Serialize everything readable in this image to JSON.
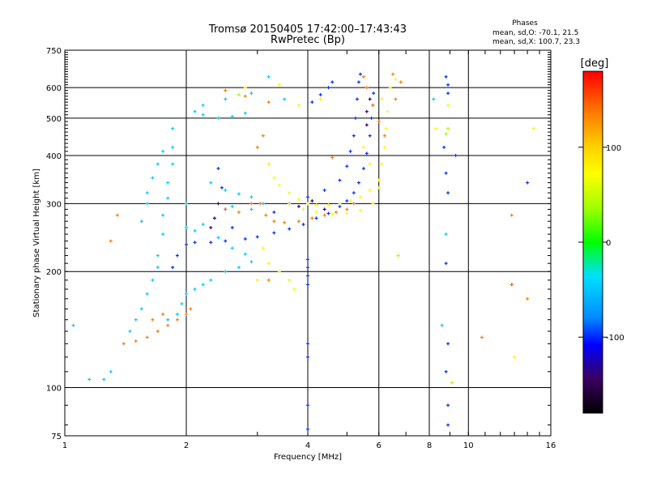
{
  "chart_data": {
    "type": "scatter",
    "title": "Tromsø 20150405 17:42:00–17:43:43",
    "subtitle": "RwPretec (Bp)",
    "xlabel": "Frequency [MHz]",
    "ylabel": "Stationary phase Virtual Height [km]",
    "xscale": "log",
    "yscale": "log",
    "xlim": [
      1,
      16
    ],
    "ylim": [
      75,
      750
    ],
    "xticks": [
      "1",
      "2",
      "4",
      "6",
      "8",
      "10",
      "16"
    ],
    "xtick_values": [
      1,
      2,
      4,
      6,
      8,
      10,
      16
    ],
    "yticks": [
      "75",
      "100",
      "200",
      "300",
      "400",
      "500",
      "600",
      "750"
    ],
    "ytick_values": [
      75,
      100,
      200,
      300,
      400,
      500,
      600,
      750
    ],
    "grid": true,
    "legend_title": "Phases",
    "legend_lines": [
      "mean, sd,O: -70.1, 21.5",
      "mean, sd,X: 100.7, 23.3"
    ],
    "colorbar": {
      "unit": "[deg]",
      "ticks": [
        "100",
        "0",
        "-100"
      ],
      "tick_values": [
        100,
        0,
        -100
      ],
      "range": [
        -180,
        180
      ]
    },
    "series": [
      {
        "phase": -100,
        "points": [
          [
            1.85,
            205
          ],
          [
            1.9,
            220
          ],
          [
            2.0,
            235
          ],
          [
            2.1,
            238
          ],
          [
            2.3,
            238
          ],
          [
            2.5,
            240
          ],
          [
            2.8,
            243
          ],
          [
            3.0,
            246
          ],
          [
            3.3,
            252
          ],
          [
            3.6,
            258
          ],
          [
            3.9,
            265
          ],
          [
            4.2,
            275
          ],
          [
            4.5,
            283
          ],
          [
            4.8,
            295
          ],
          [
            5.0,
            305
          ],
          [
            5.2,
            320
          ],
          [
            5.35,
            340
          ],
          [
            5.5,
            370
          ],
          [
            5.6,
            405
          ],
          [
            5.7,
            450
          ],
          [
            5.75,
            500
          ],
          [
            5.8,
            540
          ],
          [
            5.82,
            580
          ],
          [
            3.3,
            285
          ],
          [
            3.6,
            300
          ],
          [
            4.0,
            312
          ],
          [
            4.4,
            325
          ],
          [
            4.8,
            345
          ],
          [
            5.0,
            375
          ],
          [
            5.1,
            410
          ],
          [
            5.2,
            450
          ],
          [
            5.25,
            500
          ],
          [
            5.3,
            560
          ],
          [
            5.35,
            620
          ],
          [
            5.4,
            650
          ],
          [
            4.1,
            550
          ],
          [
            4.3,
            575
          ],
          [
            4.5,
            600
          ],
          [
            4.6,
            620
          ],
          [
            2.4,
            370
          ],
          [
            2.45,
            330
          ],
          [
            2.5,
            290
          ],
          [
            2.6,
            260
          ],
          [
            4.0,
            120
          ],
          [
            4.0,
            130
          ],
          [
            4.0,
            185
          ],
          [
            4.0,
            195
          ],
          [
            4.0,
            205
          ],
          [
            4.0,
            215
          ],
          [
            4.0,
            90
          ],
          [
            4.0,
            78
          ],
          [
            8.8,
            640
          ],
          [
            8.9,
            610
          ],
          [
            8.9,
            580
          ],
          [
            8.7,
            420
          ],
          [
            8.8,
            360
          ],
          [
            8.9,
            320
          ],
          [
            8.8,
            210
          ],
          [
            8.9,
            130
          ],
          [
            8.8,
            110
          ],
          [
            8.9,
            90
          ],
          [
            8.9,
            80
          ],
          [
            9.3,
            400
          ],
          [
            14.0,
            340
          ],
          [
            12.8,
            185
          ]
        ]
      },
      {
        "phase": -150,
        "points": [
          [
            2.3,
            260
          ],
          [
            2.35,
            275
          ],
          [
            2.4,
            300
          ],
          [
            3.6,
            300
          ],
          [
            3.8,
            295
          ],
          [
            4.1,
            305
          ],
          [
            4.4,
            290
          ],
          [
            5.6,
            520
          ],
          [
            5.7,
            560
          ],
          [
            5.6,
            480
          ]
        ]
      },
      {
        "phase": -50,
        "points": [
          [
            1.05,
            145
          ],
          [
            1.15,
            105
          ],
          [
            1.25,
            105
          ],
          [
            1.3,
            110
          ],
          [
            1.45,
            140
          ],
          [
            1.5,
            150
          ],
          [
            1.55,
            160
          ],
          [
            1.6,
            175
          ],
          [
            1.65,
            190
          ],
          [
            1.7,
            205
          ],
          [
            1.7,
            220
          ],
          [
            1.75,
            250
          ],
          [
            1.75,
            280
          ],
          [
            1.8,
            310
          ],
          [
            1.8,
            340
          ],
          [
            1.85,
            380
          ],
          [
            1.85,
            420
          ],
          [
            1.85,
            470
          ],
          [
            1.95,
            165
          ],
          [
            2.0,
            175
          ],
          [
            2.1,
            180
          ],
          [
            2.2,
            185
          ],
          [
            2.3,
            190
          ],
          [
            2.5,
            200
          ],
          [
            2.7,
            205
          ],
          [
            2.9,
            212
          ],
          [
            1.6,
            320
          ],
          [
            1.65,
            350
          ],
          [
            1.7,
            380
          ],
          [
            1.75,
            410
          ],
          [
            1.6,
            300
          ],
          [
            1.55,
            270
          ],
          [
            2.1,
            520
          ],
          [
            2.2,
            510
          ],
          [
            2.4,
            500
          ],
          [
            2.6,
            505
          ],
          [
            2.8,
            515
          ],
          [
            2.2,
            540
          ],
          [
            2.5,
            560
          ],
          [
            2.9,
            580
          ],
          [
            2.3,
            340
          ],
          [
            2.5,
            325
          ],
          [
            2.7,
            318
          ],
          [
            2.9,
            312
          ],
          [
            2.6,
            295
          ],
          [
            2.9,
            290
          ],
          [
            3.1,
            300
          ],
          [
            2.1,
            255
          ],
          [
            2.2,
            265
          ],
          [
            2.4,
            245
          ],
          [
            2.6,
            230
          ],
          [
            2.8,
            222
          ],
          [
            1.8,
            150
          ],
          [
            1.9,
            155
          ],
          [
            2.0,
            260
          ],
          [
            2.0,
            300
          ],
          [
            3.2,
            640
          ],
          [
            3.5,
            560
          ],
          [
            8.2,
            560
          ],
          [
            8.8,
            250
          ],
          [
            8.6,
            145
          ]
        ]
      },
      {
        "phase": 150,
        "points": [
          [
            1.4,
            130
          ],
          [
            1.5,
            132
          ],
          [
            1.6,
            135
          ],
          [
            1.7,
            140
          ],
          [
            1.8,
            145
          ],
          [
            1.9,
            150
          ],
          [
            2.0,
            155
          ],
          [
            2.05,
            160
          ],
          [
            1.75,
            155
          ],
          [
            1.65,
            150
          ],
          [
            3.05,
            300
          ],
          [
            3.15,
            280
          ],
          [
            3.3,
            270
          ],
          [
            3.5,
            268
          ],
          [
            3.8,
            270
          ],
          [
            4.1,
            275
          ],
          [
            4.4,
            280
          ],
          [
            4.7,
            285
          ],
          [
            5.0,
            290
          ],
          [
            5.2,
            300
          ],
          [
            2.5,
            290
          ],
          [
            2.7,
            285
          ],
          [
            2.9,
            300
          ],
          [
            3.0,
            420
          ],
          [
            3.1,
            450
          ],
          [
            2.5,
            590
          ],
          [
            2.8,
            570
          ],
          [
            3.2,
            550
          ],
          [
            5.5,
            640
          ],
          [
            5.6,
            600
          ],
          [
            5.8,
            540
          ],
          [
            6.0,
            490
          ],
          [
            6.2,
            450
          ],
          [
            6.5,
            650
          ],
          [
            6.8,
            620
          ],
          [
            6.6,
            560
          ],
          [
            1.3,
            240
          ],
          [
            1.35,
            280
          ],
          [
            3.2,
            190
          ],
          [
            4.6,
            395
          ],
          [
            10.8,
            135
          ],
          [
            12.8,
            280
          ],
          [
            12.8,
            185
          ],
          [
            14.0,
            170
          ]
        ]
      },
      {
        "phase": 95,
        "points": [
          [
            3.2,
            380
          ],
          [
            3.3,
            350
          ],
          [
            3.4,
            335
          ],
          [
            3.6,
            320
          ],
          [
            3.8,
            308
          ],
          [
            4.0,
            300
          ],
          [
            4.2,
            298
          ],
          [
            4.5,
            298
          ],
          [
            4.8,
            300
          ],
          [
            5.1,
            305
          ],
          [
            5.4,
            312
          ],
          [
            5.7,
            325
          ],
          [
            6.0,
            345
          ],
          [
            6.1,
            380
          ],
          [
            6.2,
            420
          ],
          [
            6.25,
            470
          ],
          [
            6.3,
            520
          ],
          [
            3.6,
            300
          ],
          [
            3.9,
            290
          ],
          [
            4.2,
            285
          ],
          [
            4.6,
            282
          ],
          [
            5.0,
            283
          ],
          [
            5.4,
            288
          ],
          [
            5.8,
            300
          ],
          [
            6.0,
            330
          ],
          [
            3.0,
            190
          ],
          [
            3.2,
            210
          ],
          [
            3.4,
            200
          ],
          [
            3.6,
            190
          ],
          [
            3.7,
            180
          ],
          [
            3.1,
            230
          ],
          [
            5.5,
            420
          ],
          [
            5.7,
            380
          ],
          [
            6.1,
            560
          ],
          [
            6.4,
            600
          ],
          [
            6.6,
            630
          ],
          [
            2.8,
            600
          ],
          [
            3.4,
            610
          ],
          [
            3.8,
            540
          ],
          [
            4.3,
            560
          ],
          [
            8.3,
            470
          ],
          [
            8.9,
            540
          ],
          [
            13.0,
            120
          ],
          [
            14.5,
            470
          ]
        ]
      },
      {
        "phase": 40,
        "points": [
          [
            8.8,
            455
          ],
          [
            8.9,
            470
          ],
          [
            9.1,
            103
          ],
          [
            6.7,
            220
          ],
          [
            2.7,
            575
          ]
        ]
      }
    ]
  }
}
